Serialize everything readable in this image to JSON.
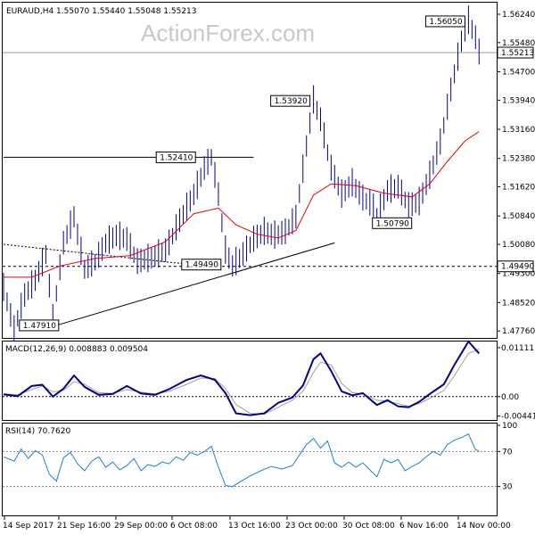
{
  "chart_data": {
    "type": "line",
    "symbol_header": "EURAUD,H4  1.55070 1.55440 1.55048 1.55213",
    "watermark": "ActionForex.com",
    "price_panel": {
      "ylim": [
        1.4755,
        1.5655
      ],
      "y_ticks": [
        "1.56240",
        "1.55480",
        "1.54700",
        "1.53940",
        "1.53160",
        "1.52380",
        "1.51620",
        "1.50840",
        "1.50080",
        "1.49300",
        "1.48520",
        "1.47760"
      ],
      "current_price": "1.55213",
      "support_level": "1.49490",
      "annotations": [
        {
          "text": "1.47910",
          "bar": 4,
          "price": 1.4791
        },
        {
          "text": "1.52410",
          "bar": 56,
          "price": 1.5241
        },
        {
          "text": "1.49490",
          "bar": 64,
          "price": 1.4949
        },
        {
          "text": "1.53920",
          "bar": 88,
          "price": 1.5392
        },
        {
          "text": "1.50790",
          "bar": 106,
          "price": 1.5079
        },
        {
          "text": "1.56050",
          "bar": 132,
          "price": 1.5605
        }
      ],
      "trendline": {
        "from": {
          "bar": 15,
          "price": 1.4791
        },
        "to": {
          "bar": 94,
          "price": 1.5012
        }
      },
      "resistance_line": {
        "from": {
          "bar": 0,
          "price": 1.5241
        },
        "to": {
          "bar": 71,
          "price": 1.5241
        }
      },
      "dashed_line": {
        "from": {
          "bar": 0,
          "price": 1.5008
        },
        "to": {
          "bar": 56,
          "price": 1.4951
        }
      },
      "path": [
        [
          0,
          1.489
        ],
        [
          3,
          1.478
        ],
        [
          6,
          1.487
        ],
        [
          9,
          1.491
        ],
        [
          12,
          1.498
        ],
        [
          14,
          1.481
        ],
        [
          17,
          1.501
        ],
        [
          20,
          1.508
        ],
        [
          23,
          1.494
        ],
        [
          26,
          1.496
        ],
        [
          29,
          1.501
        ],
        [
          32,
          1.503
        ],
        [
          35,
          1.502
        ],
        [
          38,
          1.496
        ],
        [
          42,
          1.497
        ],
        [
          46,
          1.499
        ],
        [
          50,
          1.507
        ],
        [
          54,
          1.514
        ],
        [
          57,
          1.521
        ],
        [
          59,
          1.5241
        ],
        [
          61,
          1.514
        ],
        [
          63,
          1.499
        ],
        [
          65,
          1.4949
        ],
        [
          68,
          1.498
        ],
        [
          71,
          1.502
        ],
        [
          74,
          1.504
        ],
        [
          77,
          1.503
        ],
        [
          80,
          1.504
        ],
        [
          83,
          1.508
        ],
        [
          86,
          1.527
        ],
        [
          88,
          1.5392
        ],
        [
          90,
          1.534
        ],
        [
          93,
          1.521
        ],
        [
          96,
          1.514
        ],
        [
          99,
          1.517
        ],
        [
          102,
          1.513
        ],
        [
          105,
          1.511
        ],
        [
          106,
          1.5079
        ],
        [
          109,
          1.515
        ],
        [
          112,
          1.516
        ],
        [
          115,
          1.511
        ],
        [
          118,
          1.512
        ],
        [
          121,
          1.519
        ],
        [
          124,
          1.528
        ],
        [
          127,
          1.542
        ],
        [
          130,
          1.555
        ],
        [
          132,
          1.5605
        ],
        [
          134,
          1.556
        ],
        [
          135,
          1.5521
        ]
      ],
      "ma": [
        [
          0,
          1.492
        ],
        [
          8,
          1.492
        ],
        [
          16,
          1.495
        ],
        [
          26,
          1.497
        ],
        [
          36,
          1.4978
        ],
        [
          46,
          1.5015
        ],
        [
          54,
          1.509
        ],
        [
          61,
          1.5105
        ],
        [
          66,
          1.506
        ],
        [
          72,
          1.5035
        ],
        [
          78,
          1.5025
        ],
        [
          83,
          1.5045
        ],
        [
          88,
          1.514
        ],
        [
          93,
          1.517
        ],
        [
          100,
          1.5165
        ],
        [
          108,
          1.5145
        ],
        [
          116,
          1.5135
        ],
        [
          121,
          1.517
        ],
        [
          126,
          1.523
        ],
        [
          131,
          1.5285
        ],
        [
          135,
          1.531
        ]
      ]
    },
    "macd_panel": {
      "label": "MACD(12,26,9) 0.008883 0.009504",
      "ylim": [
        -0.0055,
        0.0125
      ],
      "y_ticks": [
        "0.011111",
        "0.00",
        "-0.004419"
      ],
      "macd": [
        [
          0,
          0.0005
        ],
        [
          4,
          0.0001
        ],
        [
          8,
          0.0024
        ],
        [
          11,
          0.0027
        ],
        [
          14,
          0.0
        ],
        [
          17,
          0.0018
        ],
        [
          20,
          0.0048
        ],
        [
          23,
          0.0022
        ],
        [
          27,
          0.0004
        ],
        [
          31,
          0.0006
        ],
        [
          35,
          0.0024
        ],
        [
          39,
          0.0007
        ],
        [
          43,
          0.0004
        ],
        [
          47,
          0.0017
        ],
        [
          52,
          0.0038
        ],
        [
          56,
          0.0048
        ],
        [
          60,
          0.0038
        ],
        [
          63,
          0.0008
        ],
        [
          66,
          -0.0038
        ],
        [
          70,
          -0.0042
        ],
        [
          74,
          -0.0038
        ],
        [
          78,
          -0.0014
        ],
        [
          82,
          -0.0002
        ],
        [
          85,
          0.0025
        ],
        [
          88,
          0.0085
        ],
        [
          90,
          0.0098
        ],
        [
          93,
          0.0058
        ],
        [
          96,
          0.0012
        ],
        [
          99,
          0.0003
        ],
        [
          102,
          0.0008
        ],
        [
          106,
          -0.0019
        ],
        [
          109,
          -0.0008
        ],
        [
          112,
          -0.0022
        ],
        [
          115,
          -0.0024
        ],
        [
          118,
          -0.0012
        ],
        [
          121,
          0.0006
        ],
        [
          125,
          0.0028
        ],
        [
          128,
          0.0072
        ],
        [
          132,
          0.0125
        ],
        [
          135,
          0.0098
        ]
      ],
      "signal": [
        [
          0,
          0.0006
        ],
        [
          4,
          0.0004
        ],
        [
          8,
          0.0016
        ],
        [
          11,
          0.0024
        ],
        [
          14,
          0.0011
        ],
        [
          17,
          0.0014
        ],
        [
          20,
          0.0034
        ],
        [
          23,
          0.0028
        ],
        [
          27,
          0.0009
        ],
        [
          31,
          0.0007
        ],
        [
          35,
          0.0016
        ],
        [
          39,
          0.001
        ],
        [
          43,
          0.0006
        ],
        [
          47,
          0.0012
        ],
        [
          52,
          0.0028
        ],
        [
          56,
          0.0042
        ],
        [
          60,
          0.0041
        ],
        [
          63,
          0.0018
        ],
        [
          66,
          -0.0018
        ],
        [
          70,
          -0.0038
        ],
        [
          74,
          -0.004
        ],
        [
          78,
          -0.0024
        ],
        [
          82,
          -0.0008
        ],
        [
          85,
          0.0012
        ],
        [
          88,
          0.0055
        ],
        [
          90,
          0.0078
        ],
        [
          93,
          0.0072
        ],
        [
          96,
          0.003
        ],
        [
          99,
          0.0009
        ],
        [
          102,
          0.0006
        ],
        [
          106,
          -0.0008
        ],
        [
          109,
          -0.0011
        ],
        [
          112,
          -0.0016
        ],
        [
          115,
          -0.0022
        ],
        [
          118,
          -0.0016
        ],
        [
          121,
          -0.0004
        ],
        [
          125,
          0.0014
        ],
        [
          128,
          0.0048
        ],
        [
          132,
          0.0098
        ],
        [
          135,
          0.0108
        ]
      ]
    },
    "rsi_panel": {
      "label": "RSI(14) 70.7620",
      "ylim": [
        0,
        100
      ],
      "y_ticks": [
        "100",
        "70",
        "30"
      ],
      "levels": [
        70,
        30
      ],
      "rsi": [
        [
          0,
          64
        ],
        [
          3,
          59
        ],
        [
          5,
          73
        ],
        [
          7,
          62
        ],
        [
          9,
          71
        ],
        [
          11,
          66
        ],
        [
          13,
          44
        ],
        [
          15,
          36
        ],
        [
          17,
          63
        ],
        [
          19,
          69
        ],
        [
          21,
          56
        ],
        [
          23,
          48
        ],
        [
          25,
          59
        ],
        [
          27,
          64
        ],
        [
          29,
          52
        ],
        [
          31,
          58
        ],
        [
          33,
          49
        ],
        [
          35,
          54
        ],
        [
          37,
          62
        ],
        [
          39,
          48
        ],
        [
          41,
          55
        ],
        [
          43,
          53
        ],
        [
          45,
          58
        ],
        [
          47,
          56
        ],
        [
          49,
          64
        ],
        [
          51,
          60
        ],
        [
          53,
          69
        ],
        [
          55,
          66
        ],
        [
          57,
          70
        ],
        [
          59,
          76
        ],
        [
          61,
          52
        ],
        [
          63,
          31
        ],
        [
          65,
          30
        ],
        [
          67,
          35
        ],
        [
          70,
          42
        ],
        [
          73,
          48
        ],
        [
          76,
          53
        ],
        [
          79,
          50
        ],
        [
          82,
          54
        ],
        [
          84,
          66
        ],
        [
          86,
          78
        ],
        [
          88,
          85
        ],
        [
          90,
          74
        ],
        [
          92,
          82
        ],
        [
          94,
          57
        ],
        [
          96,
          52
        ],
        [
          98,
          58
        ],
        [
          100,
          52
        ],
        [
          102,
          57
        ],
        [
          104,
          49
        ],
        [
          106,
          41
        ],
        [
          108,
          61
        ],
        [
          110,
          57
        ],
        [
          112,
          61
        ],
        [
          114,
          48
        ],
        [
          116,
          53
        ],
        [
          118,
          57
        ],
        [
          120,
          64
        ],
        [
          122,
          70
        ],
        [
          124,
          66
        ],
        [
          126,
          78
        ],
        [
          128,
          83
        ],
        [
          130,
          86
        ],
        [
          132,
          90
        ],
        [
          134,
          72
        ],
        [
          135,
          70.76
        ]
      ]
    },
    "x_axis": {
      "ticks": [
        {
          "label": "14 Sep 2017",
          "bar": 0
        },
        {
          "label": "21 Sep 16:00",
          "bar": 21
        },
        {
          "label": "29 Sep 00:00",
          "bar": 42
        },
        {
          "label": "6 Oct 08:00",
          "bar": 63
        },
        {
          "label": "13 Oct 16:00",
          "bar": 84
        },
        {
          "label": "23 Oct 00:00",
          "bar": 105
        },
        {
          "label": "30 Oct 08:00",
          "bar": 126
        },
        {
          "label": "6 Nov 16:00",
          "bar": 147
        },
        {
          "label": "14 Nov 00:00",
          "bar": 168
        }
      ]
    }
  }
}
